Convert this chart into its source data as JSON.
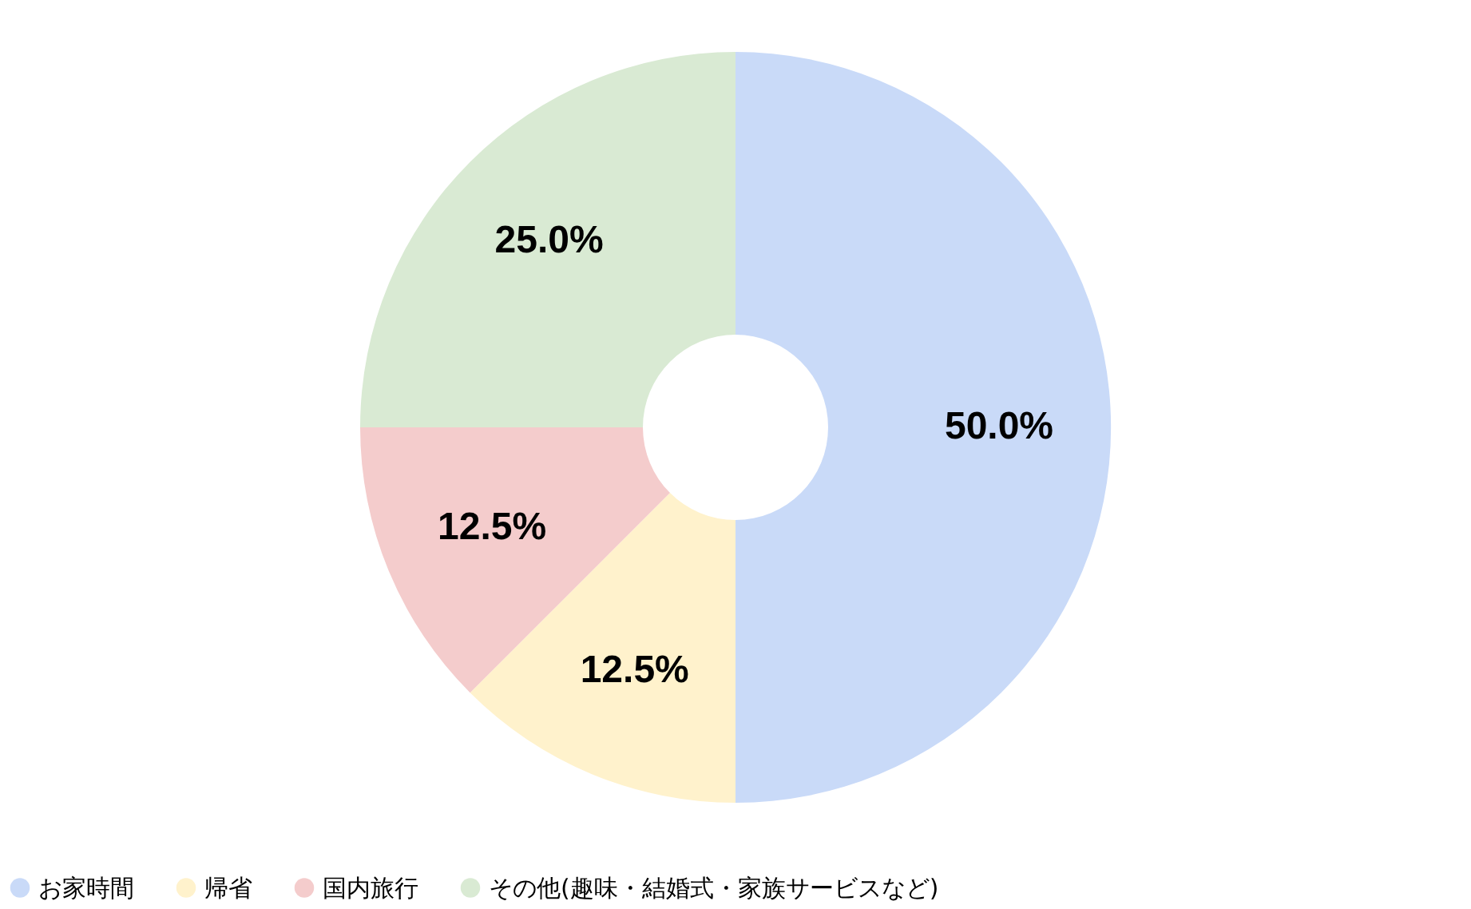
{
  "chart_data": {
    "type": "donut",
    "categories": [
      "お家時間",
      "帰省",
      "国内旅行",
      "その他(趣味・結婚式・家族サービスなど)"
    ],
    "values": [
      50,
      12.5,
      12.5,
      25
    ],
    "colors": [
      "#c9daf8",
      "#fff2cc",
      "#f4cccc",
      "#d9ead3"
    ],
    "value_labels": [
      "50.0%",
      "12.5%",
      "12.5%",
      "25.0%"
    ],
    "legend": "bottom"
  }
}
